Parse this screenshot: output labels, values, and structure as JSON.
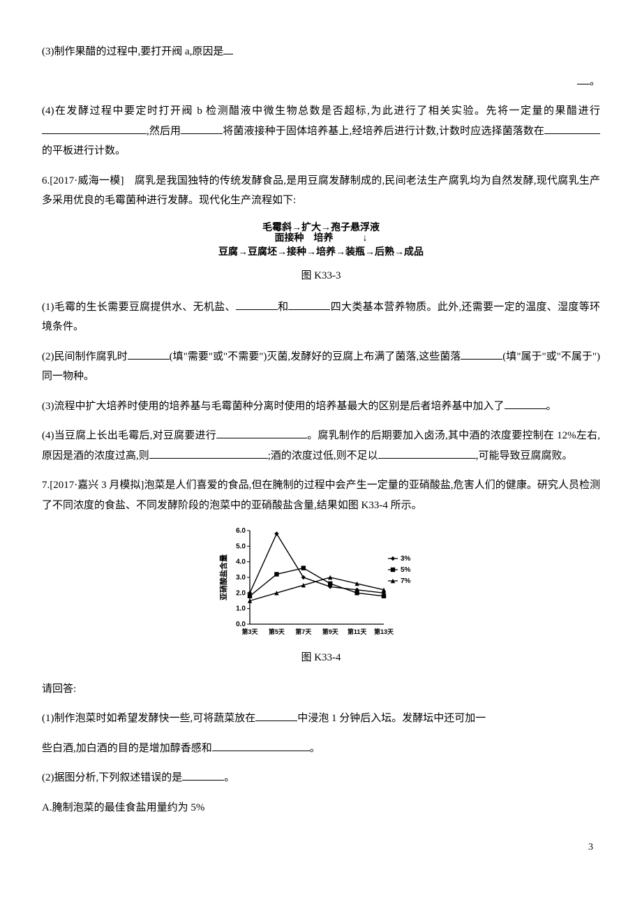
{
  "q5": {
    "p3": "(3)制作果醋的过程中,要打开阀 a,原因是",
    "p3_end": "。",
    "p4a": "(4)在发酵过程中要定时打开阀 b 检测醋液中微生物总数是否超标,为此进行了相关实验。先将一定量的果醋进行",
    "p4b": ",然后用",
    "p4c": "将菌液接种于固体培养基上,经培养后进行计数,计数时应选择菌落数在",
    "p4d": "的平板进行计数。"
  },
  "q6": {
    "intro": "6.[2017·威海一模]　腐乳是我国独特的传统发酵食品,是用豆腐发酵制成的,民间老法生产腐乳均为自然发酵,现代腐乳生产多采用优良的毛霉菌种进行发酵。现代化生产流程如下:",
    "flow_top_a": "毛霉斜",
    "flow_top_b": "扩大",
    "flow_top_c": "孢子悬浮液",
    "flow_top2_a": "面接种",
    "flow_top2_b": "培养",
    "flow_bottom": "豆腐→豆腐坯→接种→培养→装瓶→后熟→成品",
    "fig_label": "图 K33-3",
    "p1a": "(1)毛霉的生长需要豆腐提供水、无机盐、",
    "p1b": "和",
    "p1c": "四大类基本营养物质。此外,还需要一定的温度、湿度等环境条件。",
    "p2a": "(2)民间制作腐乳时",
    "p2b": "(填\"需要\"或\"不需要\")灭菌,发酵好的豆腐上布满了菌落,这些菌落",
    "p2c": "(填\"属于\"或\"不属于\")同一物种。",
    "p3a": "(3)流程中扩大培养时使用的培养基与毛霉菌种分离时使用的培养基最大的区别是后者培养基中加入了",
    "p3b": "。",
    "p4a": "(4)当豆腐上长出毛霉后,对豆腐要进行",
    "p4b": "。腐乳制作的后期要加入卤汤,其中酒的浓度要控制在 12%左右,原因是酒的浓度过高,则",
    "p4c": ";酒的浓度过低,则不足以",
    "p4d": ",可能导致豆腐腐败。"
  },
  "q7": {
    "intro": "7.[2017·嘉兴 3 月模拟]泡菜是人们喜爱的食品,但在腌制的过程中会产生一定量的亚硝酸盐,危害人们的健康。研究人员检测了不同浓度的食盐、不同发酵阶段的泡菜中的亚硝酸盐含量,结果如图 K33-4 所示。",
    "fig_label": "图 K33-4",
    "answer_prompt": "请回答:",
    "p1a": "(1)制作泡菜时如希望发酵快一些,可将蔬菜放在",
    "p1b": "中浸泡 1 分钟后入坛。发酵坛中还可加一",
    "p1c": "些白酒,加白酒的目的是增加醇香感和",
    "p1d": "。",
    "p2a": "(2)据图分析,下列叙述错误的是",
    "p2b": "。",
    "optA": "A.腌制泡菜的最佳食盐用量约为 5%"
  },
  "chart": {
    "ylabel": "亚硝酸盐含量",
    "ymax": 6.0,
    "ytick_step": 1.0,
    "yticks": [
      "0.0",
      "1.0",
      "2.0",
      "3.0",
      "4.0",
      "5.0",
      "6.0"
    ],
    "xlabels": [
      "第3天",
      "第5天",
      "第7天",
      "第9天",
      "第11天",
      "第13天"
    ],
    "legend": [
      "3%",
      "5%",
      "7%"
    ],
    "series": {
      "s3": [
        2.0,
        5.8,
        3.0,
        2.4,
        2.2,
        2.0
      ],
      "s5": [
        1.8,
        3.2,
        3.6,
        2.6,
        2.0,
        1.8
      ],
      "s7": [
        1.5,
        2.0,
        2.5,
        3.0,
        2.6,
        2.2
      ]
    },
    "colors": {
      "axis": "#000000",
      "line": "#000000",
      "text": "#000000"
    }
  },
  "page_number": "3"
}
